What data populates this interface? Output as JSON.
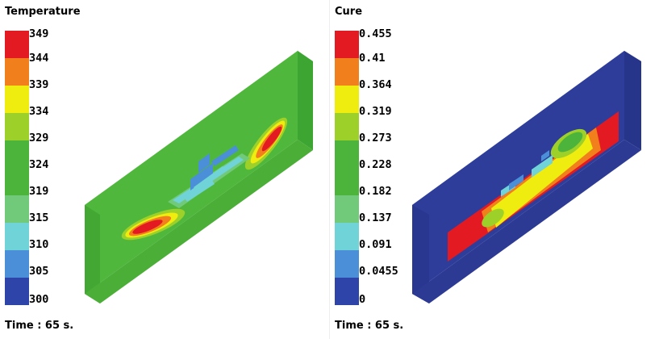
{
  "panels": [
    {
      "title": "Temperature",
      "time": "Time : 65 s.",
      "legend_labels": [
        "349",
        "344",
        "339",
        "334",
        "329",
        "324",
        "319",
        "315",
        "310",
        "305",
        "300"
      ]
    },
    {
      "title": "Cure",
      "time": "Time : 65 s.",
      "legend_labels": [
        "0.455",
        "0.41",
        "0.364",
        "0.319",
        "0.273",
        "0.228",
        "0.182",
        "0.137",
        "0.091",
        "0.0455",
        "0"
      ]
    }
  ],
  "colors": {
    "scale": [
      "#e31a22",
      "#f07f1c",
      "#efec0f",
      "#9ed02a",
      "#4cb43b",
      "#4cb43b",
      "#71c97a",
      "#6fd3d8",
      "#4b8fd9",
      "#2e44a8"
    ],
    "temperature_body": "#4fb83c",
    "cure_body": "#2e3d9a"
  },
  "icons": [
    "temperature-part-render",
    "cure-part-render"
  ]
}
